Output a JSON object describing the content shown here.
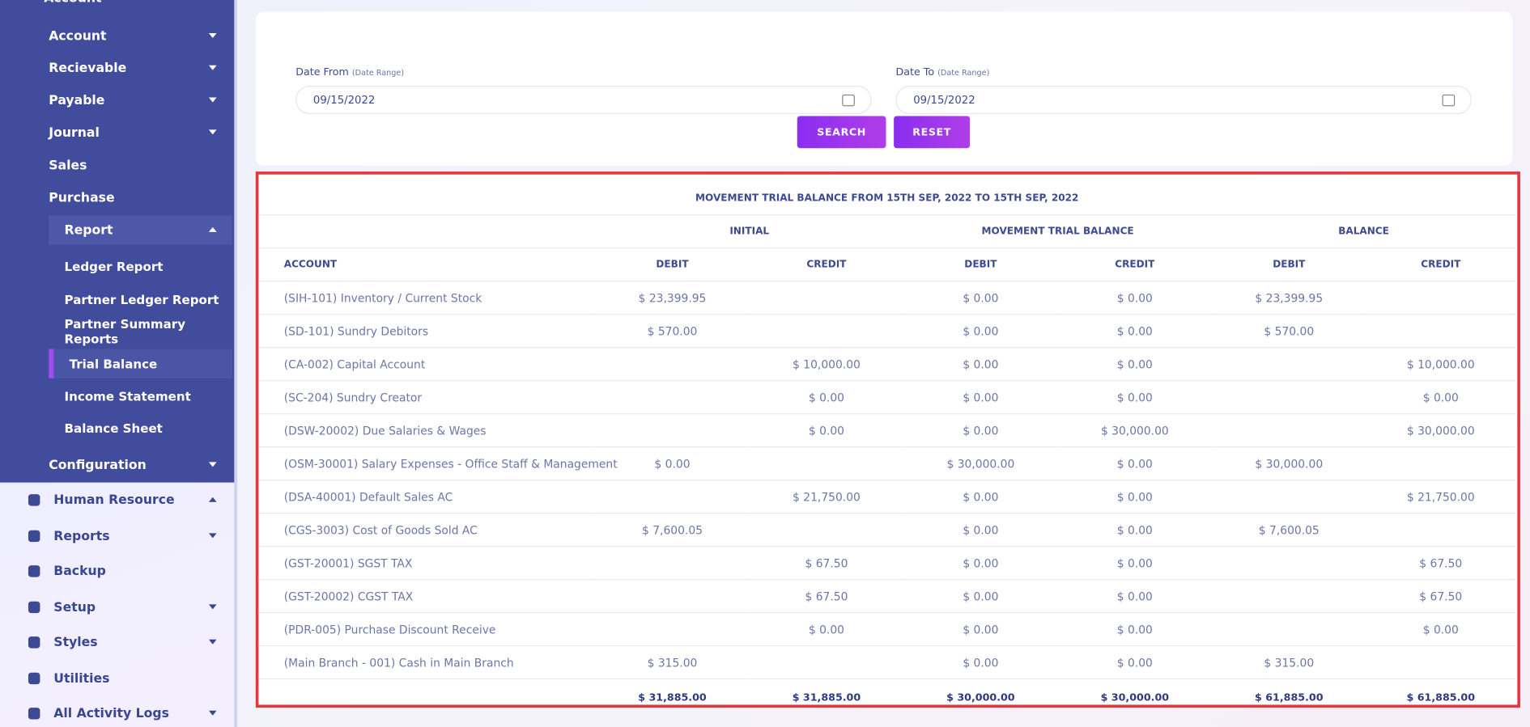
{
  "sidebar": {
    "top_cut": "Account",
    "items": [
      {
        "label": "Account",
        "caret": "down",
        "level": 1
      },
      {
        "label": "Recievable",
        "caret": "down",
        "level": 1
      },
      {
        "label": "Payable",
        "caret": "down",
        "level": 1
      },
      {
        "label": "Journal",
        "caret": "down",
        "level": 1
      },
      {
        "label": "Sales",
        "level": 1
      },
      {
        "label": "Purchase",
        "level": 1
      },
      {
        "label": "Report",
        "caret": "up",
        "level": 1,
        "open": true
      },
      {
        "label": "Ledger Report",
        "level": 2
      },
      {
        "label": "Partner Ledger Report",
        "level": 2
      },
      {
        "label": "Partner Summary Reports",
        "level": 2
      },
      {
        "label": "Trial Balance",
        "level": 2,
        "active": true
      },
      {
        "label": "Income Statement",
        "level": 2
      },
      {
        "label": "Balance Sheet",
        "level": 2
      },
      {
        "label": "Configuration",
        "caret": "down",
        "level": 1
      }
    ],
    "main_items": [
      {
        "label": "Human Resource",
        "caret": "up"
      },
      {
        "label": "Reports",
        "caret": "down"
      },
      {
        "label": "Backup"
      },
      {
        "label": "Setup",
        "caret": "down"
      },
      {
        "label": "Styles",
        "caret": "down"
      },
      {
        "label": "Utilities"
      },
      {
        "label": "All Activity Logs",
        "caret": "down"
      }
    ]
  },
  "filter": {
    "date_from": {
      "label": "Date From",
      "hint": "(Date Range)",
      "value": "09/15/2022"
    },
    "date_to": {
      "label": "Date To",
      "hint": "(Date Range)",
      "value": "09/15/2022"
    },
    "search": "SEARCH",
    "reset": "RESET"
  },
  "table": {
    "title": "MOVEMENT TRIAL BALANCE FROM 15TH SEP, 2022 TO 15TH SEP, 2022",
    "groups": [
      "INITIAL",
      "MOVEMENT TRIAL BALANCE",
      "BALANCE"
    ],
    "columns": [
      "ACCOUNT",
      "DEBIT",
      "CREDIT",
      "DEBIT",
      "CREDIT",
      "DEBIT",
      "CREDIT"
    ],
    "rows": [
      [
        "(SIH-101) Inventory / Current Stock",
        "$ 23,399.95",
        null,
        "$ 0.00",
        "$ 0.00",
        "$ 23,399.95",
        null
      ],
      [
        "(SD-101) Sundry Debitors",
        "$ 570.00",
        null,
        "$ 0.00",
        "$ 0.00",
        "$ 570.00",
        null
      ],
      [
        "(CA-002) Capital Account",
        null,
        "$ 10,000.00",
        "$ 0.00",
        "$ 0.00",
        null,
        "$ 10,000.00"
      ],
      [
        "(SC-204) Sundry Creator",
        null,
        "$ 0.00",
        "$ 0.00",
        "$ 0.00",
        null,
        "$ 0.00"
      ],
      [
        "(DSW-20002) Due Salaries & Wages",
        null,
        "$ 0.00",
        "$ 0.00",
        "$ 30,000.00",
        null,
        "$ 30,000.00"
      ],
      [
        "(OSM-30001) Salary Expenses - Office Staff & Management",
        "$ 0.00",
        null,
        "$ 30,000.00",
        "$ 0.00",
        "$ 30,000.00",
        null
      ],
      [
        "(DSA-40001) Default Sales AC",
        null,
        "$ 21,750.00",
        "$ 0.00",
        "$ 0.00",
        null,
        "$ 21,750.00"
      ],
      [
        "(CGS-3003) Cost of Goods Sold AC",
        "$ 7,600.05",
        null,
        "$ 0.00",
        "$ 0.00",
        "$ 7,600.05",
        null
      ],
      [
        "(GST-20001) SGST TAX",
        null,
        "$ 67.50",
        "$ 0.00",
        "$ 0.00",
        null,
        "$ 67.50"
      ],
      [
        "(GST-20002) CGST TAX",
        null,
        "$ 67.50",
        "$ 0.00",
        "$ 0.00",
        null,
        "$ 67.50"
      ],
      [
        "(PDR-005) Purchase Discount Receive",
        null,
        "$ 0.00",
        "$ 0.00",
        "$ 0.00",
        null,
        "$ 0.00"
      ],
      [
        "(Main Branch - 001) Cash in Main Branch",
        "$ 315.00",
        null,
        "$ 0.00",
        "$ 0.00",
        "$ 315.00",
        null
      ]
    ],
    "totals": [
      null,
      "$ 31,885.00",
      "$ 31,885.00",
      "$ 30,000.00",
      "$ 30,000.00",
      "$ 61,885.00",
      "$ 61,885.00"
    ]
  }
}
